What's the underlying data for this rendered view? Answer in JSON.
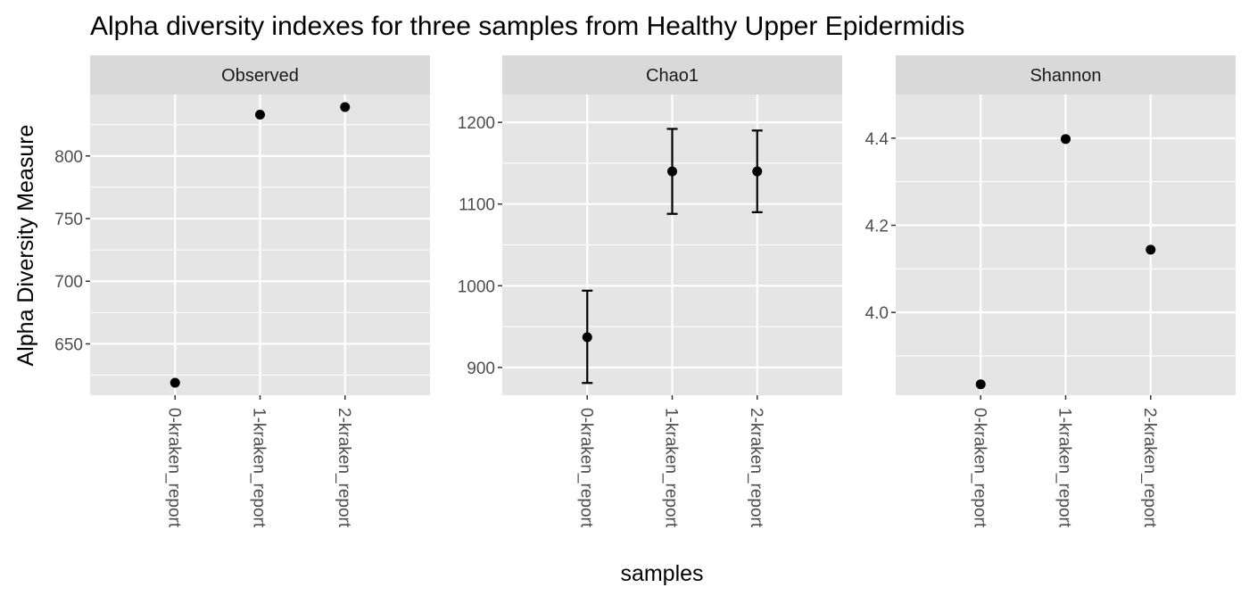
{
  "chart_data": {
    "type": "scatter",
    "title": "Alpha diversity indexes for three samples from Healthy Upper Epidermidis",
    "xlabel": "samples",
    "ylabel": "Alpha Diversity Measure",
    "categories": [
      "0-kraken_report",
      "1-kraken_report",
      "2-kraken_report"
    ],
    "panels": [
      {
        "name": "Observed",
        "ylim": [
          609,
          849
        ],
        "yticks": [
          650,
          700,
          750,
          800
        ],
        "tick_labels": [
          "650",
          "700",
          "750",
          "800"
        ],
        "values": [
          619,
          833,
          839
        ]
      },
      {
        "name": "Chao1",
        "ylim": [
          866,
          1234
        ],
        "yticks": [
          900,
          1000,
          1100,
          1200
        ],
        "tick_labels": [
          "900",
          "1000",
          "1100",
          "1200"
        ],
        "values": [
          937,
          1140,
          1140
        ],
        "error_low": [
          881,
          1088,
          1090
        ],
        "error_high": [
          994,
          1192,
          1190
        ]
      },
      {
        "name": "Shannon",
        "ylim": [
          3.81,
          4.5
        ],
        "yticks": [
          4.0,
          4.2,
          4.4
        ],
        "tick_labels": [
          "4.0",
          "4.2",
          "4.4"
        ],
        "values": [
          3.835,
          4.398,
          4.144
        ]
      }
    ],
    "grid": true,
    "legend": "none",
    "colors": {
      "panel_background": "#e5e5e5",
      "strip_background": "#d9d9d9",
      "grid": "#ffffff",
      "point": "#000000"
    }
  }
}
